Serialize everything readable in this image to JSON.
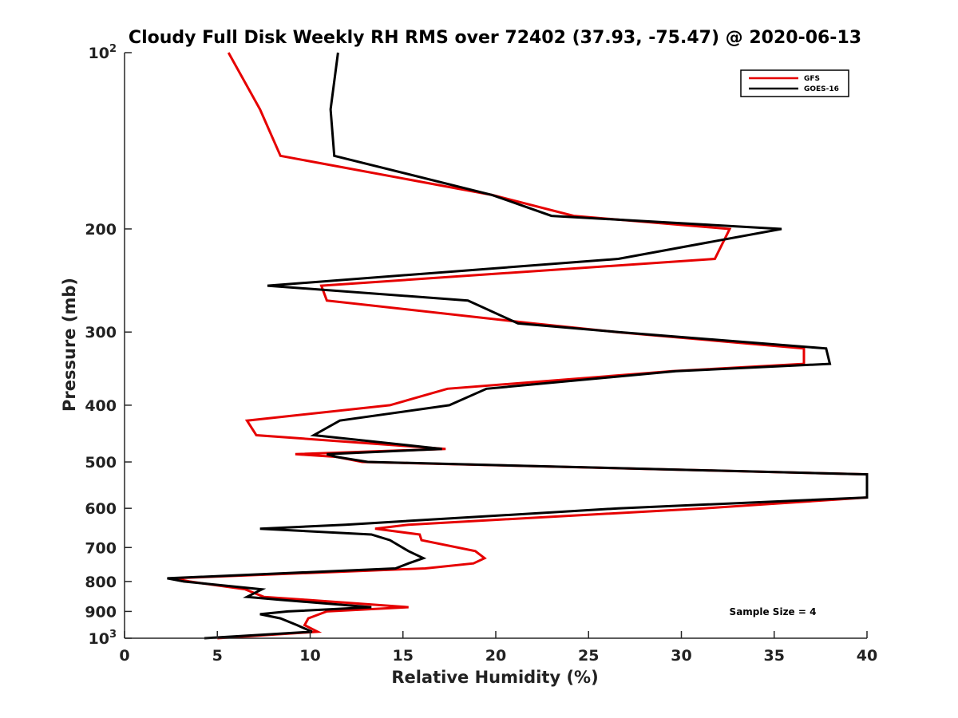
{
  "chart_data": {
    "type": "line",
    "title": "Cloudy Full Disk Weekly RH RMS over 72402 (37.93, -75.47) @ 2020-06-13",
    "xlabel": "Relative Humidity (%)",
    "ylabel": "Pressure (mb)",
    "xlim": [
      0,
      40
    ],
    "ylim": [
      100,
      1000
    ],
    "yscale": "log",
    "y_reversed": true,
    "grid": false,
    "legend_position": "top-right",
    "xticks": [
      {
        "value": 0,
        "label": "0"
      },
      {
        "value": 5,
        "label": "5"
      },
      {
        "value": 10,
        "label": "10"
      },
      {
        "value": 15,
        "label": "15"
      },
      {
        "value": 20,
        "label": "20"
      },
      {
        "value": 25,
        "label": "25"
      },
      {
        "value": 30,
        "label": "30"
      },
      {
        "value": 35,
        "label": "35"
      },
      {
        "value": 40,
        "label": "40"
      }
    ],
    "yticks": [
      {
        "value": 100,
        "base": "10",
        "exp": "2"
      },
      {
        "value": 200,
        "base": "200",
        "exp": ""
      },
      {
        "value": 300,
        "base": "300",
        "exp": ""
      },
      {
        "value": 400,
        "base": "400",
        "exp": ""
      },
      {
        "value": 500,
        "base": "500",
        "exp": ""
      },
      {
        "value": 600,
        "base": "600",
        "exp": ""
      },
      {
        "value": 700,
        "base": "700",
        "exp": ""
      },
      {
        "value": 800,
        "base": "800",
        "exp": ""
      },
      {
        "value": 900,
        "base": "900",
        "exp": ""
      },
      {
        "value": 1000,
        "base": "10",
        "exp": "3"
      }
    ],
    "annotation": "Sample Size = 4",
    "series": [
      {
        "name": "GFS",
        "color": "#e60000",
        "points": [
          [
            5.6,
            100
          ],
          [
            7.3,
            125
          ],
          [
            8.4,
            150
          ],
          [
            19.8,
            175
          ],
          [
            24.2,
            190
          ],
          [
            32.6,
            200
          ],
          [
            31.8,
            225
          ],
          [
            10.6,
            250
          ],
          [
            10.9,
            265
          ],
          [
            22,
            290
          ],
          [
            26.5,
            300
          ],
          [
            36.6,
            320
          ],
          [
            36.6,
            340
          ],
          [
            29.5,
            350
          ],
          [
            17.4,
            375
          ],
          [
            14.3,
            400
          ],
          [
            6.6,
            425
          ],
          [
            7.1,
            450
          ],
          [
            17.3,
            475
          ],
          [
            9.2,
            485
          ],
          [
            11.4,
            490
          ],
          [
            12.8,
            500
          ],
          [
            40,
            525
          ],
          [
            40,
            550
          ],
          [
            40,
            575
          ],
          [
            31.2,
            600
          ],
          [
            15.3,
            640
          ],
          [
            13.5,
            650
          ],
          [
            15.9,
            665
          ],
          [
            16,
            680
          ],
          [
            18.9,
            710
          ],
          [
            19.4,
            730
          ],
          [
            18.8,
            745
          ],
          [
            16.2,
            760
          ],
          [
            2.6,
            790
          ],
          [
            3.5,
            800
          ],
          [
            6.5,
            825
          ],
          [
            7.5,
            850
          ],
          [
            9.8,
            860
          ],
          [
            15.3,
            885
          ],
          [
            10.9,
            900
          ],
          [
            10.5,
            910
          ],
          [
            9.9,
            925
          ],
          [
            9.7,
            950
          ],
          [
            10.4,
            975
          ],
          [
            5,
            1000
          ]
        ]
      },
      {
        "name": "GOES-16",
        "color": "#000000",
        "points": [
          [
            11.5,
            100
          ],
          [
            11.1,
            125
          ],
          [
            11.3,
            150
          ],
          [
            19.8,
            175
          ],
          [
            23,
            190
          ],
          [
            35.4,
            200
          ],
          [
            26.6,
            225
          ],
          [
            7.7,
            250
          ],
          [
            18.5,
            265
          ],
          [
            21.2,
            290
          ],
          [
            26.6,
            300
          ],
          [
            37.8,
            320
          ],
          [
            38,
            340
          ],
          [
            29.7,
            350
          ],
          [
            19.5,
            375
          ],
          [
            17.5,
            400
          ],
          [
            11.6,
            425
          ],
          [
            10.2,
            450
          ],
          [
            17.1,
            475
          ],
          [
            10.9,
            485
          ],
          [
            11.4,
            490
          ],
          [
            13.1,
            500
          ],
          [
            40,
            525
          ],
          [
            40,
            550
          ],
          [
            40,
            575
          ],
          [
            26.6,
            600
          ],
          [
            11.9,
            640
          ],
          [
            7.3,
            650
          ],
          [
            13.3,
            665
          ],
          [
            14.3,
            680
          ],
          [
            15.3,
            710
          ],
          [
            16.1,
            730
          ],
          [
            15.3,
            745
          ],
          [
            14.6,
            760
          ],
          [
            2.3,
            790
          ],
          [
            3.2,
            800
          ],
          [
            7.4,
            825
          ],
          [
            6.6,
            850
          ],
          [
            8.4,
            860
          ],
          [
            13.3,
            885
          ],
          [
            8.8,
            900
          ],
          [
            7.3,
            910
          ],
          [
            8.4,
            925
          ],
          [
            9.3,
            950
          ],
          [
            10.1,
            975
          ],
          [
            4.3,
            1000
          ]
        ]
      }
    ]
  }
}
